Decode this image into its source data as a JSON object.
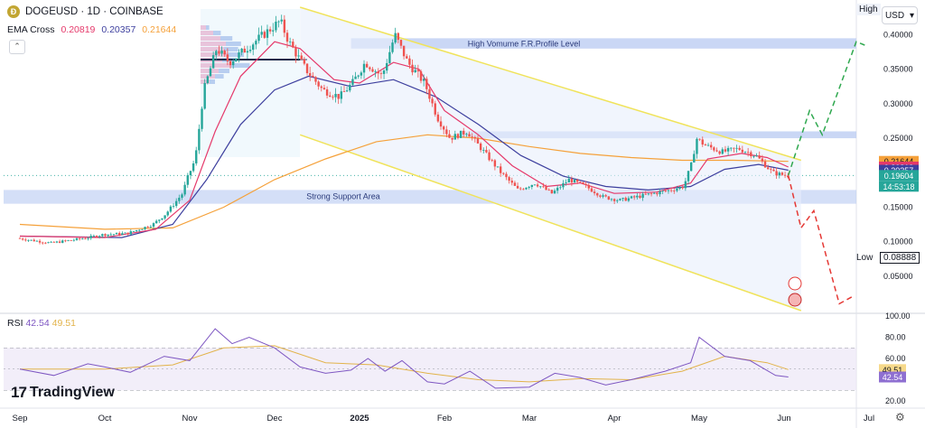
{
  "header": {
    "coin_glyph": "Ð",
    "symbol_line": "DOGEUSD · 1D · COINBASE",
    "currency": "USD",
    "high_label": "High",
    "low_label": "Low",
    "low_value": "0.08888",
    "brand": "TradingView"
  },
  "ema": {
    "label": "EMA Cross",
    "values": [
      "0.20819",
      "0.20357",
      "0.21644"
    ],
    "colors": [
      "#e5396b",
      "#3d3f9e",
      "#f5a13a"
    ]
  },
  "rsi": {
    "label": "RSI",
    "values": [
      "42.54",
      "49.51"
    ],
    "colors": [
      "#7e57c2",
      "#e2b34a"
    ]
  },
  "annotations": {
    "resistance_label": "High Vomume F.R.Profile Level",
    "support_label": "Strong Support Area"
  },
  "price_tags": [
    {
      "text": "0.21644",
      "bg": "#f5a13a",
      "fg": "#131722"
    },
    {
      "text": "0.20819",
      "bg": "#e5396b",
      "fg": "#ffffff"
    },
    {
      "text": "0.20357",
      "bg": "#3d3f9e",
      "fg": "#ffffff"
    },
    {
      "text": "0.19604",
      "bg": "#26a69a",
      "fg": "#ffffff"
    },
    {
      "text": "14:53:18",
      "bg": "#26a69a",
      "fg": "#ffffff"
    }
  ],
  "rsi_tags": [
    {
      "text": "49.51",
      "bg": "#f6d98a",
      "fg": "#131722"
    },
    {
      "text": "42.54",
      "bg": "#8e6fd1",
      "fg": "#ffffff"
    }
  ],
  "chart_data": {
    "type": "candlestick",
    "symbol": "DOGEUSD",
    "timeframe": "1D",
    "exchange": "COINBASE",
    "x_tick_labels": [
      "Sep",
      "Oct",
      "Nov",
      "Dec",
      "2025",
      "Feb",
      "Mar",
      "Apr",
      "May",
      "Jun",
      "Jul"
    ],
    "y_tick_labels": [
      "0.40000",
      "0.35000",
      "0.30000",
      "0.25000",
      "0.20000",
      "0.15000",
      "0.10000",
      "0.05000"
    ],
    "ylim": [
      0.0,
      0.44
    ],
    "rsi_y_tick_labels": [
      "100.00",
      "80.00",
      "60.00",
      "20.00"
    ],
    "rsi_ylim": [
      20,
      100
    ],
    "rsi_band": [
      30,
      70
    ],
    "price_path": [
      {
        "m": 0.0,
        "p": 0.105
      },
      {
        "m": 0.4,
        "p": 0.098
      },
      {
        "m": 0.8,
        "p": 0.105
      },
      {
        "m": 1.0,
        "p": 0.11
      },
      {
        "m": 1.3,
        "p": 0.112
      },
      {
        "m": 1.6,
        "p": 0.125
      },
      {
        "m": 1.75,
        "p": 0.14
      },
      {
        "m": 1.95,
        "p": 0.17
      },
      {
        "m": 2.0,
        "p": 0.19
      },
      {
        "m": 2.1,
        "p": 0.22
      },
      {
        "m": 2.2,
        "p": 0.32
      },
      {
        "m": 2.35,
        "p": 0.38
      },
      {
        "m": 2.5,
        "p": 0.36
      },
      {
        "m": 2.7,
        "p": 0.38
      },
      {
        "m": 2.9,
        "p": 0.4
      },
      {
        "m": 3.1,
        "p": 0.42
      },
      {
        "m": 3.2,
        "p": 0.39
      },
      {
        "m": 3.4,
        "p": 0.35
      },
      {
        "m": 3.6,
        "p": 0.32
      },
      {
        "m": 3.8,
        "p": 0.31
      },
      {
        "m": 3.95,
        "p": 0.33
      },
      {
        "m": 4.1,
        "p": 0.36
      },
      {
        "m": 4.3,
        "p": 0.34
      },
      {
        "m": 4.45,
        "p": 0.4
      },
      {
        "m": 4.6,
        "p": 0.36
      },
      {
        "m": 4.8,
        "p": 0.33
      },
      {
        "m": 4.95,
        "p": 0.28
      },
      {
        "m": 5.1,
        "p": 0.25
      },
      {
        "m": 5.3,
        "p": 0.26
      },
      {
        "m": 5.5,
        "p": 0.23
      },
      {
        "m": 5.7,
        "p": 0.2
      },
      {
        "m": 5.9,
        "p": 0.175
      },
      {
        "m": 6.1,
        "p": 0.185
      },
      {
        "m": 6.3,
        "p": 0.17
      },
      {
        "m": 6.5,
        "p": 0.19
      },
      {
        "m": 6.7,
        "p": 0.18
      },
      {
        "m": 6.9,
        "p": 0.165
      },
      {
        "m": 7.1,
        "p": 0.16
      },
      {
        "m": 7.3,
        "p": 0.165
      },
      {
        "m": 7.5,
        "p": 0.17
      },
      {
        "m": 7.7,
        "p": 0.175
      },
      {
        "m": 7.85,
        "p": 0.18
      },
      {
        "m": 7.95,
        "p": 0.215
      },
      {
        "m": 8.0,
        "p": 0.25
      },
      {
        "m": 8.1,
        "p": 0.24
      },
      {
        "m": 8.3,
        "p": 0.23
      },
      {
        "m": 8.5,
        "p": 0.235
      },
      {
        "m": 8.7,
        "p": 0.225
      },
      {
        "m": 8.9,
        "p": 0.2
      },
      {
        "m": 9.05,
        "p": 0.196
      }
    ],
    "ema_fast_path": [
      {
        "m": 0.0,
        "p": 0.108
      },
      {
        "m": 1.0,
        "p": 0.106
      },
      {
        "m": 1.6,
        "p": 0.118
      },
      {
        "m": 2.0,
        "p": 0.16
      },
      {
        "m": 2.3,
        "p": 0.26
      },
      {
        "m": 2.6,
        "p": 0.34
      },
      {
        "m": 3.0,
        "p": 0.39
      },
      {
        "m": 3.3,
        "p": 0.38
      },
      {
        "m": 3.7,
        "p": 0.335
      },
      {
        "m": 4.0,
        "p": 0.33
      },
      {
        "m": 4.4,
        "p": 0.36
      },
      {
        "m": 4.7,
        "p": 0.35
      },
      {
        "m": 5.0,
        "p": 0.29
      },
      {
        "m": 5.4,
        "p": 0.255
      },
      {
        "m": 5.8,
        "p": 0.21
      },
      {
        "m": 6.2,
        "p": 0.18
      },
      {
        "m": 6.6,
        "p": 0.185
      },
      {
        "m": 7.0,
        "p": 0.17
      },
      {
        "m": 7.5,
        "p": 0.172
      },
      {
        "m": 7.9,
        "p": 0.185
      },
      {
        "m": 8.1,
        "p": 0.22
      },
      {
        "m": 8.5,
        "p": 0.228
      },
      {
        "m": 8.8,
        "p": 0.222
      },
      {
        "m": 9.05,
        "p": 0.20819
      }
    ],
    "ema_mid_path": [
      {
        "m": 0.0,
        "p": 0.108
      },
      {
        "m": 1.2,
        "p": 0.106
      },
      {
        "m": 1.8,
        "p": 0.125
      },
      {
        "m": 2.2,
        "p": 0.19
      },
      {
        "m": 2.6,
        "p": 0.27
      },
      {
        "m": 3.0,
        "p": 0.32
      },
      {
        "m": 3.4,
        "p": 0.34
      },
      {
        "m": 3.9,
        "p": 0.325
      },
      {
        "m": 4.4,
        "p": 0.335
      },
      {
        "m": 4.9,
        "p": 0.31
      },
      {
        "m": 5.4,
        "p": 0.27
      },
      {
        "m": 5.9,
        "p": 0.225
      },
      {
        "m": 6.4,
        "p": 0.195
      },
      {
        "m": 6.9,
        "p": 0.18
      },
      {
        "m": 7.4,
        "p": 0.175
      },
      {
        "m": 7.9,
        "p": 0.18
      },
      {
        "m": 8.3,
        "p": 0.205
      },
      {
        "m": 8.7,
        "p": 0.212
      },
      {
        "m": 9.05,
        "p": 0.20357
      }
    ],
    "ema_slow_path": [
      {
        "m": 0.0,
        "p": 0.125
      },
      {
        "m": 1.0,
        "p": 0.118
      },
      {
        "m": 1.8,
        "p": 0.12
      },
      {
        "m": 2.4,
        "p": 0.15
      },
      {
        "m": 3.0,
        "p": 0.19
      },
      {
        "m": 3.6,
        "p": 0.22
      },
      {
        "m": 4.2,
        "p": 0.245
      },
      {
        "m": 4.8,
        "p": 0.255
      },
      {
        "m": 5.4,
        "p": 0.25
      },
      {
        "m": 6.0,
        "p": 0.238
      },
      {
        "m": 6.6,
        "p": 0.228
      },
      {
        "m": 7.2,
        "p": 0.222
      },
      {
        "m": 7.8,
        "p": 0.218
      },
      {
        "m": 8.4,
        "p": 0.218
      },
      {
        "m": 9.05,
        "p": 0.21644
      }
    ],
    "channel_upper": [
      {
        "m": 3.3,
        "p": 0.44
      },
      {
        "m": 9.2,
        "p": 0.218
      }
    ],
    "channel_lower": [
      {
        "m": 3.3,
        "p": 0.255
      },
      {
        "m": 9.2,
        "p": 0.0
      }
    ],
    "resistance_zone": [
      0.38,
      0.395
    ],
    "support_zone": [
      0.155,
      0.175
    ],
    "mid_zone": [
      0.25,
      0.26
    ],
    "projection_bull": [
      {
        "m": 9.05,
        "p": 0.196
      },
      {
        "m": 9.3,
        "p": 0.29
      },
      {
        "m": 9.45,
        "p": 0.255
      },
      {
        "m": 9.85,
        "p": 0.39
      },
      {
        "m": 9.95,
        "p": 0.385
      }
    ],
    "projection_bear": [
      {
        "m": 9.05,
        "p": 0.196
      },
      {
        "m": 9.2,
        "p": 0.12
      },
      {
        "m": 9.35,
        "p": 0.145
      },
      {
        "m": 9.65,
        "p": 0.01
      },
      {
        "m": 9.8,
        "p": 0.02
      }
    ],
    "rsi_path": [
      {
        "m": 0.0,
        "v": 50
      },
      {
        "m": 0.4,
        "v": 44
      },
      {
        "m": 0.8,
        "v": 55
      },
      {
        "m": 1.0,
        "v": 52
      },
      {
        "m": 1.3,
        "v": 47
      },
      {
        "m": 1.7,
        "v": 62
      },
      {
        "m": 2.0,
        "v": 58
      },
      {
        "m": 2.3,
        "v": 88
      },
      {
        "m": 2.5,
        "v": 74
      },
      {
        "m": 2.7,
        "v": 80
      },
      {
        "m": 3.0,
        "v": 70
      },
      {
        "m": 3.3,
        "v": 52
      },
      {
        "m": 3.6,
        "v": 46
      },
      {
        "m": 3.9,
        "v": 49
      },
      {
        "m": 4.1,
        "v": 60
      },
      {
        "m": 4.3,
        "v": 48
      },
      {
        "m": 4.5,
        "v": 58
      },
      {
        "m": 4.8,
        "v": 38
      },
      {
        "m": 5.0,
        "v": 36
      },
      {
        "m": 5.3,
        "v": 48
      },
      {
        "m": 5.6,
        "v": 32
      },
      {
        "m": 6.0,
        "v": 33
      },
      {
        "m": 6.3,
        "v": 46
      },
      {
        "m": 6.6,
        "v": 42
      },
      {
        "m": 6.9,
        "v": 35
      },
      {
        "m": 7.2,
        "v": 40
      },
      {
        "m": 7.6,
        "v": 48
      },
      {
        "m": 7.9,
        "v": 56
      },
      {
        "m": 8.0,
        "v": 80
      },
      {
        "m": 8.3,
        "v": 62
      },
      {
        "m": 8.6,
        "v": 58
      },
      {
        "m": 8.9,
        "v": 44
      },
      {
        "m": 9.05,
        "v": 42.54
      }
    ],
    "rsi_ma_path": [
      {
        "m": 0.0,
        "v": 50
      },
      {
        "m": 1.0,
        "v": 50
      },
      {
        "m": 1.8,
        "v": 54
      },
      {
        "m": 2.4,
        "v": 70
      },
      {
        "m": 3.0,
        "v": 72
      },
      {
        "m": 3.6,
        "v": 56
      },
      {
        "m": 4.2,
        "v": 54
      },
      {
        "m": 4.8,
        "v": 46
      },
      {
        "m": 5.4,
        "v": 40
      },
      {
        "m": 6.0,
        "v": 38
      },
      {
        "m": 6.6,
        "v": 41
      },
      {
        "m": 7.2,
        "v": 40
      },
      {
        "m": 7.8,
        "v": 48
      },
      {
        "m": 8.3,
        "v": 62
      },
      {
        "m": 8.8,
        "v": 56
      },
      {
        "m": 9.05,
        "v": 49.51
      }
    ]
  }
}
